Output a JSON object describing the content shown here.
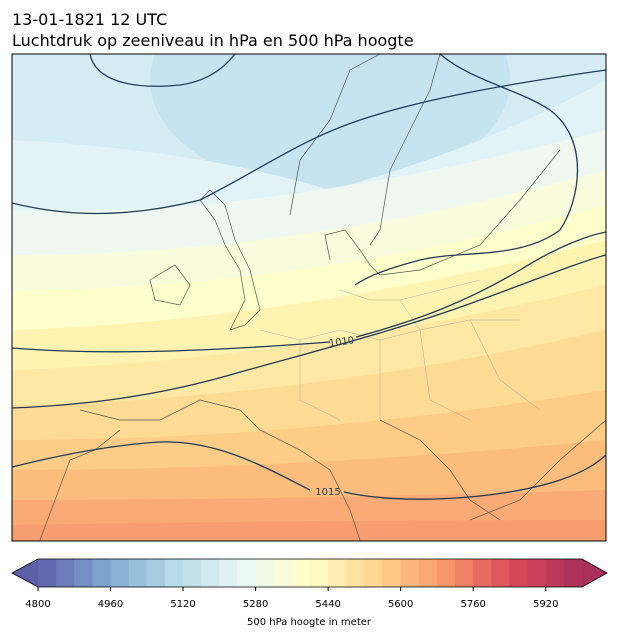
{
  "header": {
    "title": "13-01-1821 12 UTC",
    "subtitle": "Luchtdruk op zeeniveau in hPa en 500 hPa hoogte"
  },
  "map": {
    "contour_labels": [
      1010,
      1015
    ]
  },
  "colorbar": {
    "label": "500 hPa hoogte in meter",
    "lim": [
      4800,
      6000
    ],
    "step": 40,
    "ticks": [
      4800,
      4960,
      5120,
      5280,
      5440,
      5600,
      5760,
      5920
    ],
    "colormap": [
      "#5e5ea8",
      "#7fa8cf",
      "#b6dbe9",
      "#eaf6f6",
      "#ffffc8",
      "#fed48c",
      "#f7966a",
      "#d8485a",
      "#a8305a"
    ]
  }
}
